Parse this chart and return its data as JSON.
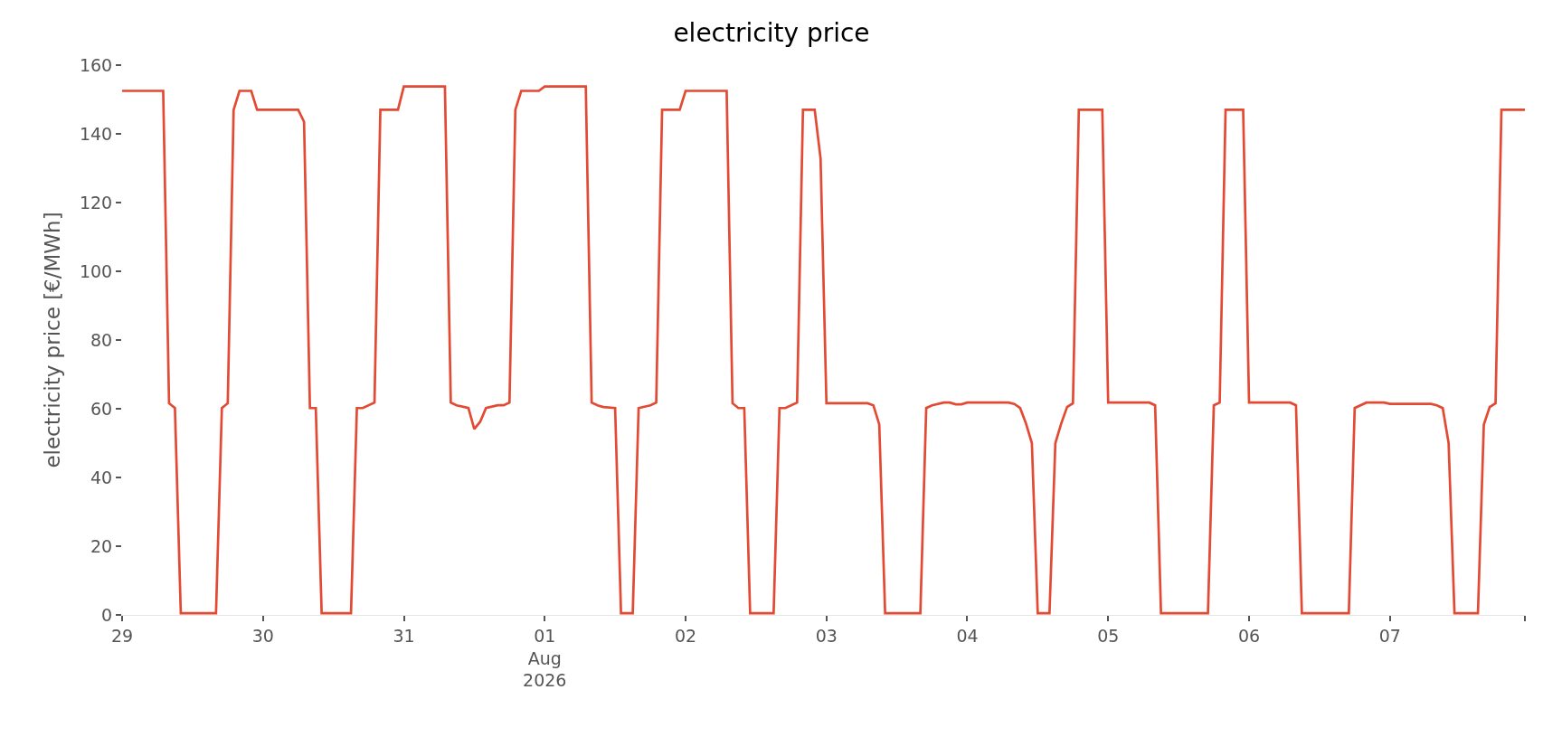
{
  "chart_data": {
    "type": "line",
    "title": "electricity price",
    "ylabel": "electricity price [€/MWh]",
    "x": [
      "2026-07-29T00:00",
      "2026-07-29T07:00",
      "2026-07-29T08:00",
      "2026-07-29T09:00",
      "2026-07-29T10:00",
      "2026-07-29T16:00",
      "2026-07-29T17:00",
      "2026-07-29T18:00",
      "2026-07-29T19:00",
      "2026-07-29T20:00",
      "2026-07-29T22:00",
      "2026-07-29T23:00",
      "2026-07-30T06:00",
      "2026-07-30T07:00",
      "2026-07-30T08:00",
      "2026-07-30T09:00",
      "2026-07-30T10:00",
      "2026-07-30T15:00",
      "2026-07-30T16:00",
      "2026-07-30T17:00",
      "2026-07-30T19:00",
      "2026-07-30T20:00",
      "2026-07-30T23:00",
      "2026-07-31T00:00",
      "2026-07-31T07:00",
      "2026-07-31T08:00",
      "2026-07-31T09:00",
      "2026-07-31T11:00",
      "2026-07-31T12:00",
      "2026-07-31T13:00",
      "2026-07-31T14:00",
      "2026-07-31T16:00",
      "2026-07-31T17:00",
      "2026-07-31T18:00",
      "2026-07-31T19:00",
      "2026-07-31T20:00",
      "2026-07-31T23:00",
      "2026-08-01T00:00",
      "2026-08-01T07:00",
      "2026-08-01T08:00",
      "2026-08-01T09:00",
      "2026-08-01T10:00",
      "2026-08-01T12:00",
      "2026-08-01T13:00",
      "2026-08-01T15:00",
      "2026-08-01T16:00",
      "2026-08-01T18:00",
      "2026-08-01T19:00",
      "2026-08-01T20:00",
      "2026-08-01T23:00",
      "2026-08-02T00:00",
      "2026-08-02T07:00",
      "2026-08-02T08:00",
      "2026-08-02T09:00",
      "2026-08-02T10:00",
      "2026-08-02T11:00",
      "2026-08-02T15:00",
      "2026-08-02T16:00",
      "2026-08-02T17:00",
      "2026-08-02T19:00",
      "2026-08-02T20:00",
      "2026-08-02T22:00",
      "2026-08-02T23:00",
      "2026-08-03T00:00",
      "2026-08-03T07:00",
      "2026-08-03T08:00",
      "2026-08-03T09:00",
      "2026-08-03T10:00",
      "2026-08-03T16:00",
      "2026-08-03T17:00",
      "2026-08-03T18:00",
      "2026-08-03T20:00",
      "2026-08-03T21:00",
      "2026-08-03T22:00",
      "2026-08-03T23:00",
      "2026-08-04T00:00",
      "2026-08-04T07:00",
      "2026-08-04T08:00",
      "2026-08-04T09:00",
      "2026-08-04T10:00",
      "2026-08-04T11:00",
      "2026-08-04T12:00",
      "2026-08-04T14:00",
      "2026-08-04T15:00",
      "2026-08-04T16:00",
      "2026-08-04T17:00",
      "2026-08-04T18:00",
      "2026-08-04T19:00",
      "2026-08-04T23:00",
      "2026-08-05T00:00",
      "2026-08-05T07:00",
      "2026-08-05T08:00",
      "2026-08-05T09:00",
      "2026-08-05T17:00",
      "2026-08-05T18:00",
      "2026-08-05T19:00",
      "2026-08-05T20:00",
      "2026-08-05T23:00",
      "2026-08-06T00:00",
      "2026-08-06T07:00",
      "2026-08-06T08:00",
      "2026-08-06T09:00",
      "2026-08-06T17:00",
      "2026-08-06T18:00",
      "2026-08-06T20:00",
      "2026-08-06T23:00",
      "2026-08-07T00:00",
      "2026-08-07T07:00",
      "2026-08-07T08:00",
      "2026-08-07T09:00",
      "2026-08-07T10:00",
      "2026-08-07T11:00",
      "2026-08-07T15:00",
      "2026-08-07T16:00",
      "2026-08-07T17:00",
      "2026-08-07T18:00",
      "2026-08-07T19:00",
      "2026-08-07T23:00"
    ],
    "series": [
      {
        "color": "#e24a33",
        "values": [
          152.5,
          152.5,
          61.6,
          60.2,
          0.5,
          0.5,
          60.2,
          61.6,
          147,
          152.5,
          152.5,
          147,
          147,
          143.5,
          60.2,
          60.2,
          0.5,
          0.5,
          60.2,
          60.2,
          61.8,
          147,
          147,
          153.8,
          153.8,
          61.8,
          61,
          60.2,
          54.1,
          56.2,
          60.2,
          61,
          61,
          61.8,
          147,
          152.5,
          152.5,
          153.8,
          153.8,
          61.8,
          61,
          60.5,
          60.2,
          0.5,
          0.5,
          60.2,
          61,
          61.8,
          147,
          147,
          152.5,
          152.5,
          61.6,
          60.2,
          60.2,
          0.5,
          0.5,
          60.2,
          60.2,
          61.8,
          147,
          147,
          132.8,
          61.6,
          61.6,
          61,
          55.4,
          0.5,
          0.5,
          60.2,
          61,
          61.8,
          61.8,
          61.3,
          61.3,
          61.8,
          61.8,
          61.4,
          60.2,
          55.7,
          50,
          0.5,
          0.5,
          50,
          55.7,
          60.5,
          61.6,
          147,
          147,
          61.8,
          61.8,
          61,
          0.5,
          0.5,
          61,
          61.8,
          147,
          147,
          61.8,
          61.8,
          61,
          0.5,
          0.5,
          60.2,
          61.8,
          61.8,
          61.4,
          61.4,
          61,
          60.2,
          50,
          0.5,
          0.5,
          55.4,
          60.5,
          61.6,
          147,
          147
        ]
      }
    ],
    "xlim": [
      "2026-07-29T00:00",
      "2026-08-07T23:00"
    ],
    "xticks": [
      {
        "value": "2026-07-29",
        "label": "29"
      },
      {
        "value": "2026-07-30",
        "label": "30"
      },
      {
        "value": "2026-07-31",
        "label": "31"
      },
      {
        "value": "2026-08-01",
        "label": "01\nAug\n2026"
      },
      {
        "value": "2026-08-02",
        "label": "02"
      },
      {
        "value": "2026-08-03",
        "label": "03"
      },
      {
        "value": "2026-08-04",
        "label": "04"
      },
      {
        "value": "2026-08-05",
        "label": "05"
      },
      {
        "value": "2026-08-06",
        "label": "06"
      },
      {
        "value": "2026-08-07",
        "label": "07"
      },
      {
        "value": "2026-08-07T23:00",
        "label": null
      }
    ],
    "ylim": [
      0,
      160
    ],
    "yticks": [
      0,
      20,
      40,
      60,
      80,
      100,
      120,
      140,
      160
    ],
    "grid": false,
    "marker": "none",
    "line_style": "solid"
  }
}
